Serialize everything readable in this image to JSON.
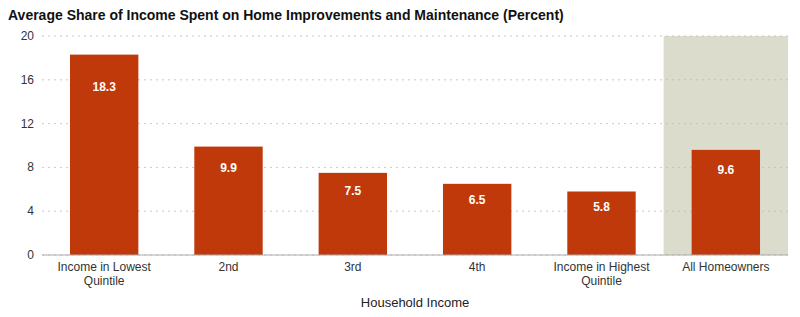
{
  "chart_data": {
    "type": "bar",
    "title": "Average Share of Income Spent on Home Improvements and Maintenance (Percent)",
    "xlabel": "Household Income",
    "categories": [
      "Income in Lowest\nQuintile",
      "2nd",
      "3rd",
      "4th",
      "Income in Highest\nQuintile",
      "All Homeowners"
    ],
    "values": [
      18.3,
      9.9,
      7.5,
      6.5,
      5.8,
      9.6
    ],
    "color": "#c0390a",
    "ylim": [
      0,
      20
    ],
    "yticks": [
      0,
      4,
      8,
      12,
      16,
      20
    ],
    "grid": true,
    "data_labels": true
  }
}
